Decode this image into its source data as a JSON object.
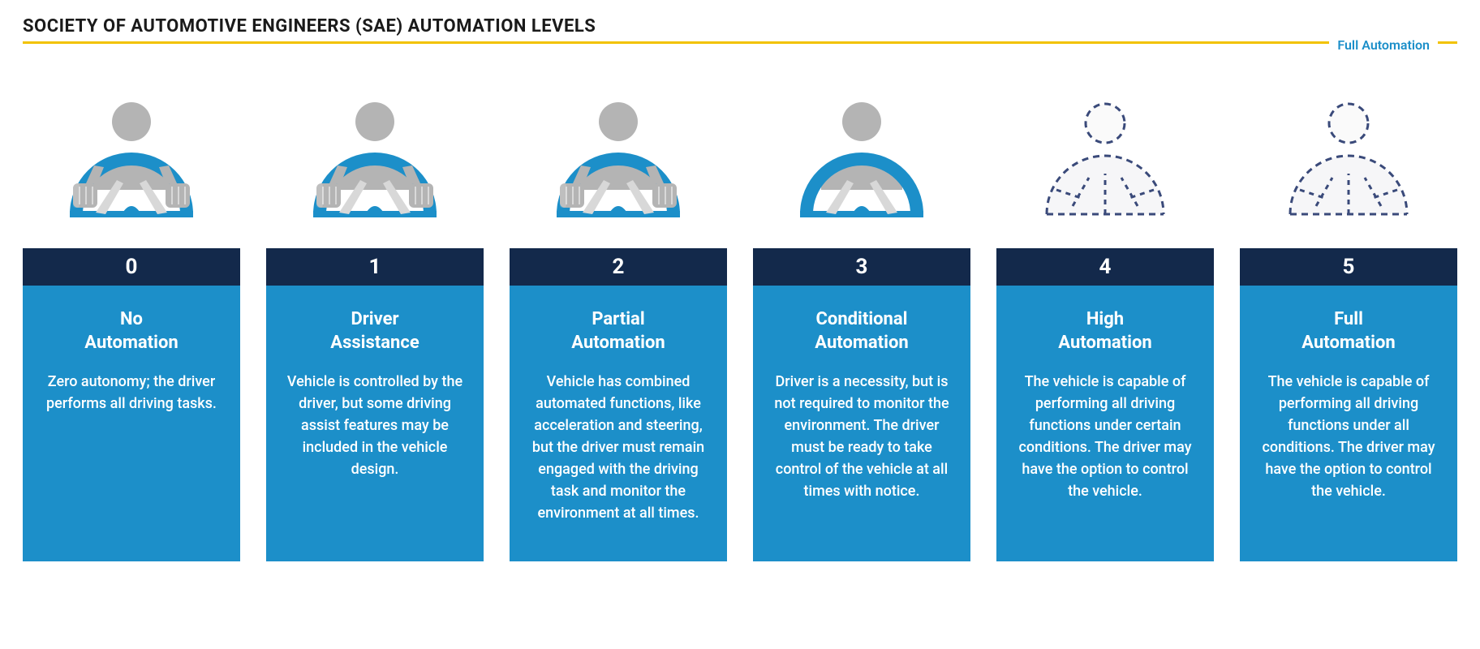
{
  "title": "SOCIETY OF AUTOMOTIVE ENGINEERS (SAE) AUTOMATION LEVELS",
  "corner_label": "Full Automation",
  "colors": {
    "rule": "#f2c200",
    "header_bg": "#13294b",
    "body_bg": "#1c8fc9",
    "corner_text": "#1c8fc9",
    "icon_person": "#b4b4b4",
    "icon_wheel": "#1c8fc9",
    "icon_dashed_stroke": "#3a4a7a",
    "icon_dashed_fill": "#ffffff"
  },
  "icon_style": {
    "solid_stroke_width": 0,
    "dashed_stroke_width": 3,
    "dash_pattern": "8,6"
  },
  "levels": [
    {
      "number": "0",
      "name": "No\nAutomation",
      "desc": "Zero autonomy; the driver performs all driving tasks.",
      "icon_variant": "hands-solid"
    },
    {
      "number": "1",
      "name": "Driver\nAssistance",
      "desc": "Vehicle is controlled by the driver, but some driving assist features may be included in the vehicle design.",
      "icon_variant": "hands-solid"
    },
    {
      "number": "2",
      "name": "Partial\nAutomation",
      "desc": "Vehicle has combined automated functions, like acceleration and steering, but the driver must remain engaged with the driving task and monitor the environment at all times.",
      "icon_variant": "hands-solid"
    },
    {
      "number": "3",
      "name": "Conditional\nAutomation",
      "desc": "Driver is a necessity, but is not required to monitor the environment. The driver must be ready to take control of the vehicle at all times with notice.",
      "icon_variant": "nohands-solid"
    },
    {
      "number": "4",
      "name": "High\nAutomation",
      "desc": "The vehicle is capable of performing all driving functions under certain conditions. The driver may have the option to control the vehicle.",
      "icon_variant": "dashed"
    },
    {
      "number": "5",
      "name": "Full\nAutomation",
      "desc": "The vehicle is capable of performing all driving functions under all conditions. The driver may have the option to control the vehicle.",
      "icon_variant": "dashed"
    }
  ]
}
